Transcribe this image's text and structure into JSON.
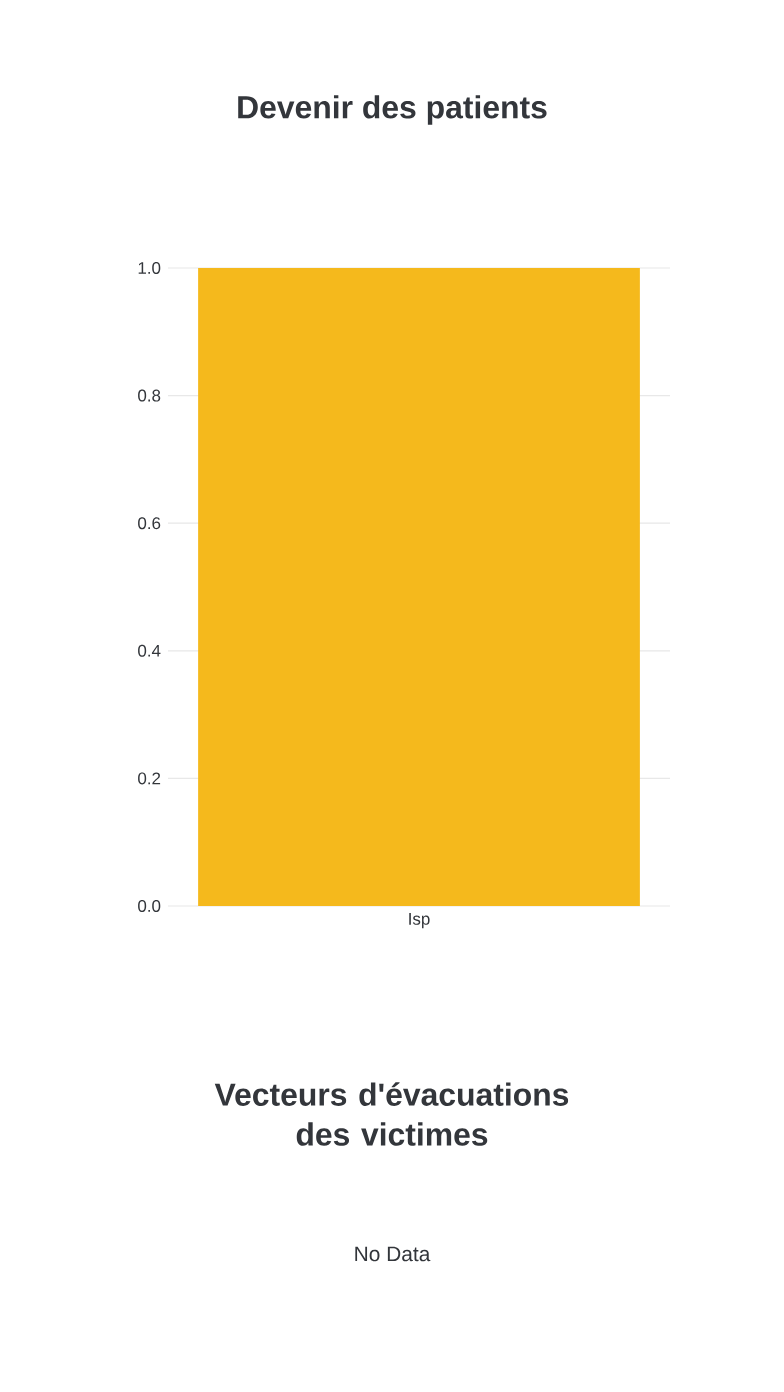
{
  "chart_data": [
    {
      "type": "bar",
      "title": "Devenir des patients",
      "categories": [
        "Isp"
      ],
      "values": [
        1.0
      ],
      "color": "#f5b91c",
      "ylim": [
        0,
        1.0
      ],
      "yticks": [
        {
          "value": 0,
          "label": "0.0"
        },
        0.2,
        0.4,
        0.6,
        0.8,
        {
          "value": 1,
          "label": "1.0"
        }
      ],
      "grid": "y"
    },
    {
      "type": "other",
      "title": "Vecteurs d'évacuations des victimes",
      "annotations": [
        "No Data"
      ]
    }
  ]
}
